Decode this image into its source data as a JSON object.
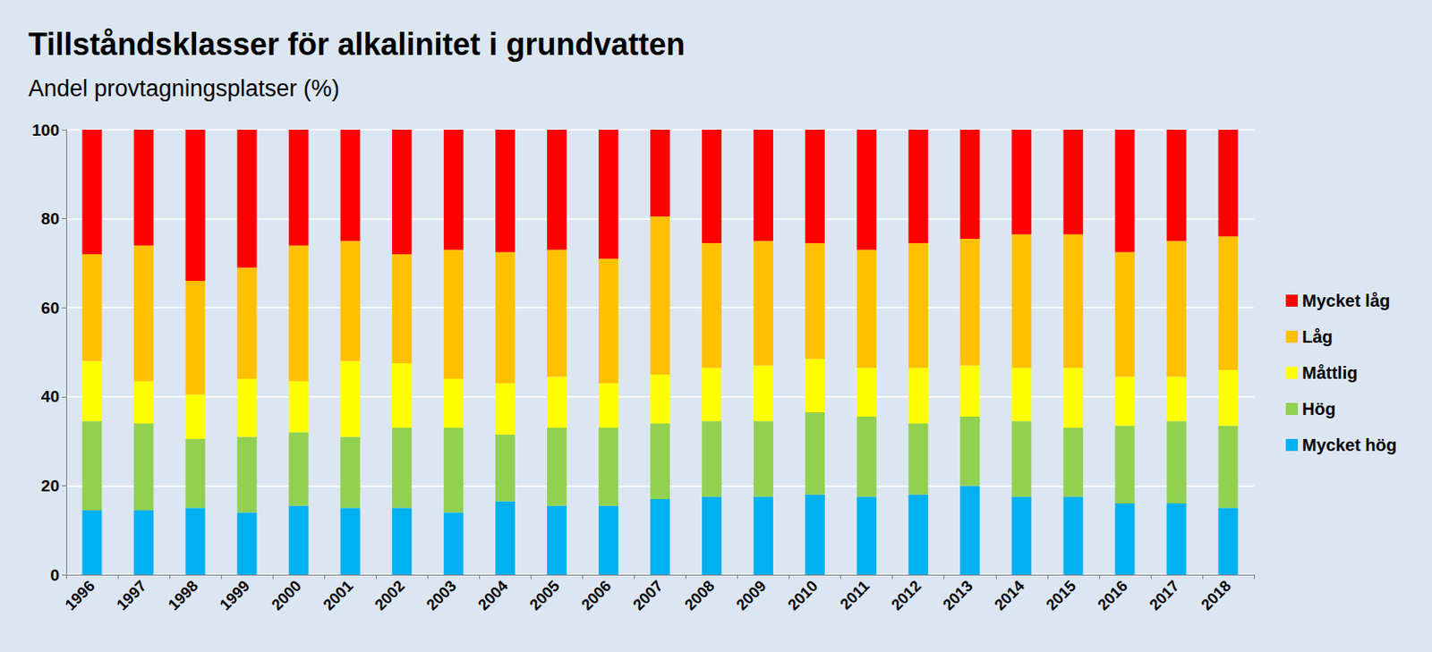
{
  "chart_data": {
    "type": "bar",
    "stacked": true,
    "title": "Tillståndsklasser för alkalinitet i grundvatten",
    "subtitle": "Andel provtagningsplatser (%)",
    "categories": [
      "1996",
      "1997",
      "1998",
      "1999",
      "2000",
      "2001",
      "2002",
      "2003",
      "2004",
      "2005",
      "2006",
      "2007",
      "2008",
      "2009",
      "2010",
      "2011",
      "2012",
      "2013",
      "2014",
      "2015",
      "2016",
      "2017",
      "2018"
    ],
    "series": [
      {
        "name": "Mycket hög",
        "color": "#00b0f0",
        "values": [
          14.5,
          14.5,
          15,
          14,
          15.5,
          15,
          15,
          14,
          16.5,
          15.5,
          15.5,
          17,
          17.5,
          17.5,
          18,
          17.5,
          18,
          20,
          17.5,
          17.5,
          16,
          16,
          15
        ]
      },
      {
        "name": "Hög",
        "color": "#92d050",
        "values": [
          20,
          19.5,
          15.5,
          17,
          16.5,
          16,
          18,
          19,
          15,
          17.5,
          17.5,
          17,
          17,
          17,
          18.5,
          18,
          16,
          15.5,
          17,
          15.5,
          17.5,
          18.5,
          18.5
        ]
      },
      {
        "name": "Måttlig",
        "color": "#ffff00",
        "values": [
          13.5,
          9.5,
          10,
          13,
          11.5,
          17,
          14.5,
          11,
          11.5,
          11.5,
          10,
          11,
          12,
          12.5,
          12,
          11,
          12.5,
          11.5,
          12,
          13.5,
          11,
          10,
          12.5
        ]
      },
      {
        "name": "Låg",
        "color": "#ffc000",
        "values": [
          24,
          30.5,
          25.5,
          25,
          30.5,
          27,
          24.5,
          29,
          29.5,
          28.5,
          28,
          35.5,
          28,
          28,
          26,
          26.5,
          28,
          28.5,
          30,
          30,
          28,
          30.5,
          30
        ]
      },
      {
        "name": "Mycket låg",
        "color": "#ff0000",
        "values": [
          28,
          26,
          34,
          31,
          26,
          25,
          28,
          27,
          27.5,
          27,
          29,
          19.5,
          25.5,
          25,
          25.5,
          27,
          25.5,
          24.5,
          23.5,
          23.5,
          27.5,
          25,
          24
        ]
      }
    ],
    "ylim": [
      0,
      100
    ],
    "yticks": [
      0,
      20,
      40,
      60,
      80,
      100
    ],
    "grid": true,
    "legend": "right"
  }
}
